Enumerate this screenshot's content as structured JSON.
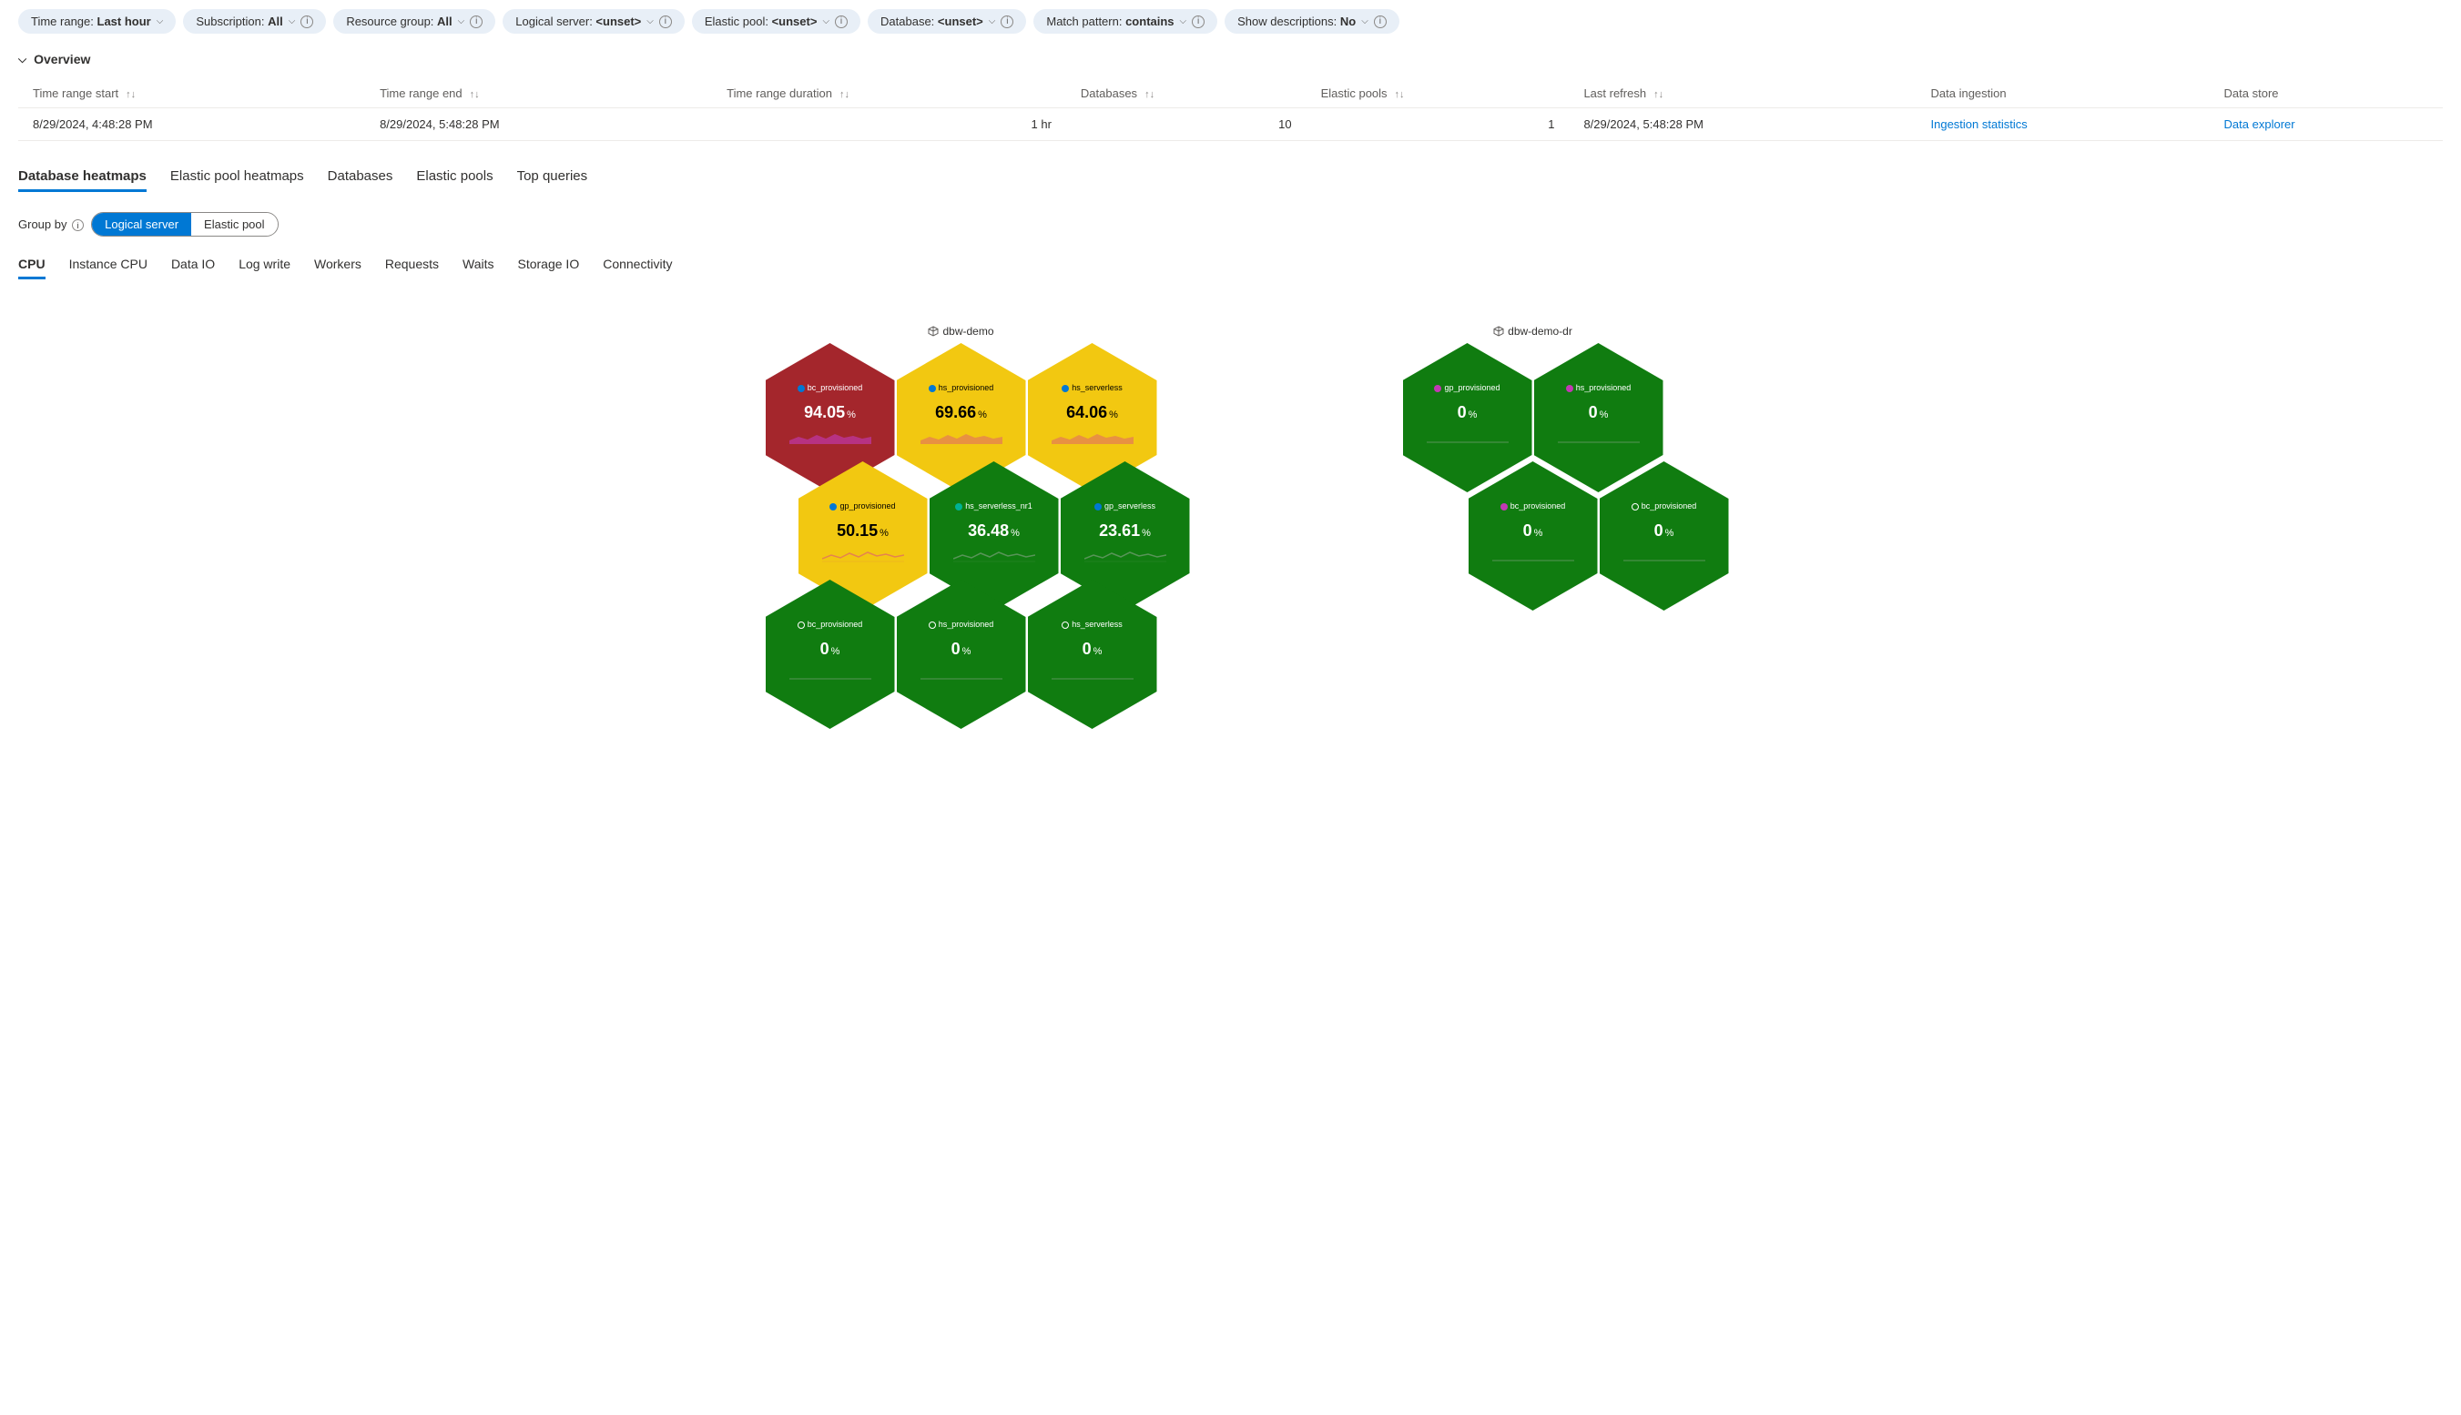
{
  "filters": [
    {
      "label": "Time range:",
      "value": "Last hour",
      "info": false
    },
    {
      "label": "Subscription:",
      "value": "All",
      "info": true
    },
    {
      "label": "Resource group:",
      "value": "All",
      "info": true
    },
    {
      "label": "Logical server:",
      "value": "<unset>",
      "info": true
    },
    {
      "label": "Elastic pool:",
      "value": "<unset>",
      "info": true
    },
    {
      "label": "Database:",
      "value": "<unset>",
      "info": true
    },
    {
      "label": "Match pattern:",
      "value": "contains",
      "info": true
    },
    {
      "label": "Show descriptions:",
      "value": "No",
      "info": true
    }
  ],
  "overview": {
    "title": "Overview",
    "columns": [
      "Time range start",
      "Time range end",
      "Time range duration",
      "Databases",
      "Elastic pools",
      "Last refresh",
      "Data ingestion",
      "Data store"
    ],
    "sortable": [
      true,
      true,
      true,
      true,
      true,
      true,
      false,
      false
    ],
    "row": {
      "start": "8/29/2024, 4:48:28 PM",
      "end": "8/29/2024, 5:48:28 PM",
      "duration": "1 hr",
      "databases": "10",
      "pools": "1",
      "refresh": "8/29/2024, 5:48:28 PM",
      "ingestion": "Ingestion statistics",
      "store": "Data explorer"
    }
  },
  "tabs": [
    "Database heatmaps",
    "Elastic pool heatmaps",
    "Databases",
    "Elastic pools",
    "Top queries"
  ],
  "active_tab": 0,
  "group_by": {
    "label": "Group by",
    "options": [
      "Logical server",
      "Elastic pool"
    ],
    "active": 0
  },
  "sub_tabs": [
    "CPU",
    "Instance CPU",
    "Data IO",
    "Log write",
    "Workers",
    "Requests",
    "Waits",
    "Storage IO",
    "Connectivity"
  ],
  "active_sub_tab": 0,
  "colors": {
    "red": "#a4262c",
    "yellow": "#f2c811",
    "green": "#107c10",
    "dot_blue": "#0078d4",
    "dot_teal": "#00b294",
    "dot_magenta": "#c239b3",
    "spark_red": "#c239b3",
    "spark_yellow": "#e3735e",
    "spark_green": "#4b7a4b"
  },
  "clusters": [
    {
      "title": "dbw-demo",
      "rows": [
        [
          {
            "name": "bc_provisioned",
            "value": "94.05",
            "color": "red",
            "dot": "#0078d4",
            "spark": "#c239b3",
            "spark_fill": true
          },
          {
            "name": "hs_provisioned",
            "value": "69.66",
            "color": "yellow",
            "dot": "#0078d4",
            "spark": "#e3735e",
            "spark_fill": true
          },
          {
            "name": "hs_serverless",
            "value": "64.06",
            "color": "yellow",
            "dot": "#0078d4",
            "spark": "#e3735e",
            "spark_fill": true
          }
        ],
        [
          {
            "name": "gp_provisioned",
            "value": "50.15",
            "color": "yellow",
            "dot": "#0078d4",
            "spark": "#e3735e",
            "spark_fill": false
          },
          {
            "name": "hs_serverless_nr1",
            "value": "36.48",
            "color": "green",
            "dot": "#00b294",
            "spark": "#6b9b6b",
            "spark_fill": false
          },
          {
            "name": "gp_serverless",
            "value": "23.61",
            "color": "green",
            "dot": "#0078d4",
            "spark": "#6b9b6b",
            "spark_fill": false
          }
        ],
        [
          {
            "name": "bc_provisioned",
            "value": "0",
            "color": "green",
            "circle": true,
            "spark": "#6b9b6b",
            "flat": true
          },
          {
            "name": "hs_provisioned",
            "value": "0",
            "color": "green",
            "circle": true,
            "spark": "#6b9b6b",
            "flat": true
          },
          {
            "name": "hs_serverless",
            "value": "0",
            "color": "green",
            "circle": true,
            "spark": "#6b9b6b",
            "flat": true
          }
        ]
      ]
    },
    {
      "title": "dbw-demo-dr",
      "rows": [
        [
          {
            "name": "gp_provisioned",
            "value": "0",
            "color": "green",
            "dot": "#c239b3",
            "spark": "#6b9b6b",
            "flat": true
          },
          {
            "name": "hs_provisioned",
            "value": "0",
            "color": "green",
            "dot": "#c239b3",
            "spark": "#6b9b6b",
            "flat": true
          }
        ],
        [
          {
            "name": "bc_provisioned",
            "value": "0",
            "color": "green",
            "dot": "#c239b3",
            "spark": "#6b9b6b",
            "flat": true
          },
          {
            "name": "bc_provisioned",
            "value": "0",
            "color": "green",
            "circle": true,
            "spark": "#6b9b6b",
            "flat": true
          }
        ]
      ]
    }
  ]
}
